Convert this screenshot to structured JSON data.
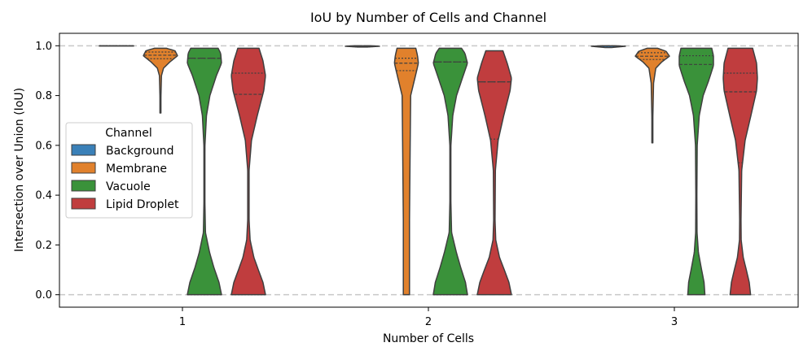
{
  "chart_data": {
    "type": "violin",
    "title": "IoU by Number of Cells and Channel",
    "xlabel": "Number of Cells",
    "ylabel": "Intersection over Union (IoU)",
    "categories": [
      "1",
      "2",
      "3"
    ],
    "ylim": [
      -0.05,
      1.05
    ],
    "yticks": [
      "0.0",
      "0.2",
      "0.4",
      "0.6",
      "0.8",
      "1.0"
    ],
    "reference_lines": [
      0.0,
      1.0
    ],
    "legend": {
      "title": "Channel",
      "placement": "center-left"
    },
    "series": [
      {
        "name": "Background",
        "color": "#3a80b8",
        "groups": [
          {
            "category": "1",
            "min": 0.999,
            "max": 1.0,
            "q1": 1.0,
            "median": 1.0,
            "q3": 1.0,
            "profile": [
              [
                0.999,
                1.0
              ],
              [
                1.0,
                1.0
              ]
            ]
          },
          {
            "category": "2",
            "min": 0.995,
            "max": 1.0,
            "q1": 0.999,
            "median": 1.0,
            "q3": 1.0,
            "profile": [
              [
                0.995,
                0.3
              ],
              [
                0.998,
                1.0
              ],
              [
                1.0,
                0.5
              ]
            ]
          },
          {
            "category": "3",
            "min": 0.993,
            "max": 1.0,
            "q1": 0.999,
            "median": 1.0,
            "q3": 1.0,
            "profile": [
              [
                0.993,
                0.2
              ],
              [
                0.998,
                1.0
              ],
              [
                1.0,
                0.4
              ]
            ]
          }
        ]
      },
      {
        "name": "Membrane",
        "color": "#e1812c",
        "groups": [
          {
            "category": "1",
            "min": 0.73,
            "max": 0.99,
            "q1": 0.948,
            "median": 0.962,
            "q3": 0.975,
            "profile": [
              [
                0.73,
                0.02
              ],
              [
                0.8,
                0.03
              ],
              [
                0.88,
                0.06
              ],
              [
                0.91,
                0.18
              ],
              [
                0.935,
                0.55
              ],
              [
                0.96,
                1.0
              ],
              [
                0.98,
                0.85
              ],
              [
                0.99,
                0.35
              ]
            ]
          },
          {
            "category": "2",
            "min": 0.0,
            "max": 0.99,
            "q1": 0.9,
            "median": 0.93,
            "q3": 0.95,
            "profile": [
              [
                0.0,
                0.18
              ],
              [
                0.3,
                0.18
              ],
              [
                0.6,
                0.22
              ],
              [
                0.8,
                0.25
              ],
              [
                0.9,
                0.6
              ],
              [
                0.93,
                0.7
              ],
              [
                0.96,
                0.65
              ],
              [
                0.99,
                0.55
              ]
            ]
          },
          {
            "category": "3",
            "min": 0.61,
            "max": 0.99,
            "q1": 0.945,
            "median": 0.958,
            "q3": 0.972,
            "profile": [
              [
                0.61,
                0.02
              ],
              [
                0.72,
                0.03
              ],
              [
                0.85,
                0.07
              ],
              [
                0.91,
                0.2
              ],
              [
                0.935,
                0.55
              ],
              [
                0.958,
                1.0
              ],
              [
                0.978,
                0.8
              ],
              [
                0.99,
                0.3
              ]
            ]
          }
        ]
      },
      {
        "name": "Vacuole",
        "color": "#3a923a",
        "groups": [
          {
            "category": "1",
            "min": 0.0,
            "max": 0.99,
            "q1": 0.0,
            "median": 0.95,
            "q3": 0.95,
            "profile": [
              [
                0.0,
                1.0
              ],
              [
                0.05,
                0.85
              ],
              [
                0.11,
                0.55
              ],
              [
                0.17,
                0.3
              ],
              [
                0.25,
                0.06
              ],
              [
                0.4,
                0.02
              ],
              [
                0.6,
                0.03
              ],
              [
                0.72,
                0.12
              ],
              [
                0.8,
                0.32
              ],
              [
                0.88,
                0.7
              ],
              [
                0.93,
                1.0
              ],
              [
                0.97,
                0.95
              ],
              [
                0.99,
                0.8
              ]
            ]
          },
          {
            "category": "2",
            "min": 0.0,
            "max": 0.99,
            "q1": 0.0,
            "median": 0.935,
            "q3": 0.935,
            "profile": [
              [
                0.0,
                1.0
              ],
              [
                0.05,
                0.88
              ],
              [
                0.11,
                0.6
              ],
              [
                0.17,
                0.35
              ],
              [
                0.25,
                0.07
              ],
              [
                0.4,
                0.02
              ],
              [
                0.6,
                0.03
              ],
              [
                0.72,
                0.14
              ],
              [
                0.8,
                0.36
              ],
              [
                0.88,
                0.75
              ],
              [
                0.93,
                1.0
              ],
              [
                0.97,
                0.85
              ],
              [
                0.99,
                0.65
              ]
            ]
          },
          {
            "category": "3",
            "min": 0.0,
            "max": 0.99,
            "q1": 0.4,
            "median": 0.925,
            "q3": 0.96,
            "profile": [
              [
                0.0,
                0.5
              ],
              [
                0.05,
                0.45
              ],
              [
                0.11,
                0.28
              ],
              [
                0.17,
                0.12
              ],
              [
                0.25,
                0.04
              ],
              [
                0.4,
                0.03
              ],
              [
                0.6,
                0.05
              ],
              [
                0.72,
                0.17
              ],
              [
                0.8,
                0.4
              ],
              [
                0.86,
                0.72
              ],
              [
                0.92,
                1.0
              ],
              [
                0.96,
                1.0
              ],
              [
                0.99,
                0.9
              ]
            ]
          }
        ]
      },
      {
        "name": "Lipid Droplet",
        "color": "#c03d3e",
        "groups": [
          {
            "category": "1",
            "min": 0.0,
            "max": 0.99,
            "q1": 0.0,
            "median": 0.805,
            "q3": 0.89,
            "profile": [
              [
                0.0,
                1.0
              ],
              [
                0.05,
                0.85
              ],
              [
                0.1,
                0.58
              ],
              [
                0.15,
                0.32
              ],
              [
                0.22,
                0.1
              ],
              [
                0.3,
                0.04
              ],
              [
                0.5,
                0.04
              ],
              [
                0.62,
                0.18
              ],
              [
                0.72,
                0.52
              ],
              [
                0.82,
                0.9
              ],
              [
                0.88,
                1.0
              ],
              [
                0.94,
                0.85
              ],
              [
                0.99,
                0.62
              ]
            ]
          },
          {
            "category": "2",
            "min": 0.0,
            "max": 0.98,
            "q1": 0.625,
            "median": 0.855,
            "q3": 0.855,
            "profile": [
              [
                0.0,
                1.0
              ],
              [
                0.05,
                0.85
              ],
              [
                0.1,
                0.58
              ],
              [
                0.15,
                0.3
              ],
              [
                0.22,
                0.08
              ],
              [
                0.3,
                0.04
              ],
              [
                0.5,
                0.06
              ],
              [
                0.62,
                0.22
              ],
              [
                0.72,
                0.55
              ],
              [
                0.82,
                0.92
              ],
              [
                0.87,
                1.0
              ],
              [
                0.93,
                0.75
              ],
              [
                0.98,
                0.5
              ]
            ]
          },
          {
            "category": "3",
            "min": 0.0,
            "max": 0.99,
            "q1": 0.53,
            "median": 0.815,
            "q3": 0.89,
            "profile": [
              [
                0.0,
                0.6
              ],
              [
                0.05,
                0.52
              ],
              [
                0.1,
                0.35
              ],
              [
                0.15,
                0.17
              ],
              [
                0.22,
                0.05
              ],
              [
                0.3,
                0.04
              ],
              [
                0.5,
                0.08
              ],
              [
                0.62,
                0.28
              ],
              [
                0.72,
                0.62
              ],
              [
                0.82,
                0.95
              ],
              [
                0.87,
                1.0
              ],
              [
                0.93,
                0.95
              ],
              [
                0.99,
                0.72
              ]
            ]
          }
        ]
      }
    ]
  }
}
